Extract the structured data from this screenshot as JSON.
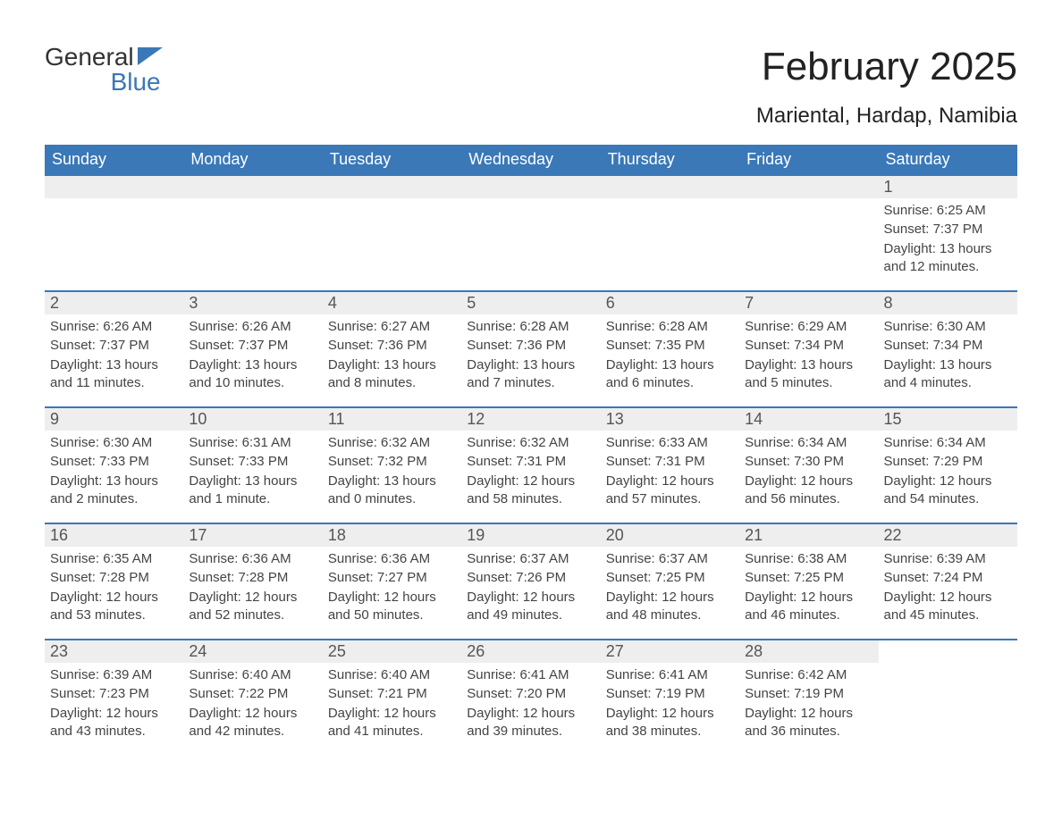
{
  "logo": {
    "word1": "General",
    "word2": "Blue",
    "accent_color": "#3a78b8"
  },
  "title": "February 2025",
  "location": "Mariental, Hardap, Namibia",
  "day_headers": [
    "Sunday",
    "Monday",
    "Tuesday",
    "Wednesday",
    "Thursday",
    "Friday",
    "Saturday"
  ],
  "colors": {
    "header_bg": "#3a78b8",
    "header_fg": "#ffffff",
    "daynum_bg": "#eeeeee",
    "rule": "#3a78b8",
    "text": "#333333"
  },
  "weeks": [
    [
      null,
      null,
      null,
      null,
      null,
      null,
      {
        "n": "1",
        "sunrise": "Sunrise: 6:25 AM",
        "sunset": "Sunset: 7:37 PM",
        "daylight": "Daylight: 13 hours and 12 minutes."
      }
    ],
    [
      {
        "n": "2",
        "sunrise": "Sunrise: 6:26 AM",
        "sunset": "Sunset: 7:37 PM",
        "daylight": "Daylight: 13 hours and 11 minutes."
      },
      {
        "n": "3",
        "sunrise": "Sunrise: 6:26 AM",
        "sunset": "Sunset: 7:37 PM",
        "daylight": "Daylight: 13 hours and 10 minutes."
      },
      {
        "n": "4",
        "sunrise": "Sunrise: 6:27 AM",
        "sunset": "Sunset: 7:36 PM",
        "daylight": "Daylight: 13 hours and 8 minutes."
      },
      {
        "n": "5",
        "sunrise": "Sunrise: 6:28 AM",
        "sunset": "Sunset: 7:36 PM",
        "daylight": "Daylight: 13 hours and 7 minutes."
      },
      {
        "n": "6",
        "sunrise": "Sunrise: 6:28 AM",
        "sunset": "Sunset: 7:35 PM",
        "daylight": "Daylight: 13 hours and 6 minutes."
      },
      {
        "n": "7",
        "sunrise": "Sunrise: 6:29 AM",
        "sunset": "Sunset: 7:34 PM",
        "daylight": "Daylight: 13 hours and 5 minutes."
      },
      {
        "n": "8",
        "sunrise": "Sunrise: 6:30 AM",
        "sunset": "Sunset: 7:34 PM",
        "daylight": "Daylight: 13 hours and 4 minutes."
      }
    ],
    [
      {
        "n": "9",
        "sunrise": "Sunrise: 6:30 AM",
        "sunset": "Sunset: 7:33 PM",
        "daylight": "Daylight: 13 hours and 2 minutes."
      },
      {
        "n": "10",
        "sunrise": "Sunrise: 6:31 AM",
        "sunset": "Sunset: 7:33 PM",
        "daylight": "Daylight: 13 hours and 1 minute."
      },
      {
        "n": "11",
        "sunrise": "Sunrise: 6:32 AM",
        "sunset": "Sunset: 7:32 PM",
        "daylight": "Daylight: 13 hours and 0 minutes."
      },
      {
        "n": "12",
        "sunrise": "Sunrise: 6:32 AM",
        "sunset": "Sunset: 7:31 PM",
        "daylight": "Daylight: 12 hours and 58 minutes."
      },
      {
        "n": "13",
        "sunrise": "Sunrise: 6:33 AM",
        "sunset": "Sunset: 7:31 PM",
        "daylight": "Daylight: 12 hours and 57 minutes."
      },
      {
        "n": "14",
        "sunrise": "Sunrise: 6:34 AM",
        "sunset": "Sunset: 7:30 PM",
        "daylight": "Daylight: 12 hours and 56 minutes."
      },
      {
        "n": "15",
        "sunrise": "Sunrise: 6:34 AM",
        "sunset": "Sunset: 7:29 PM",
        "daylight": "Daylight: 12 hours and 54 minutes."
      }
    ],
    [
      {
        "n": "16",
        "sunrise": "Sunrise: 6:35 AM",
        "sunset": "Sunset: 7:28 PM",
        "daylight": "Daylight: 12 hours and 53 minutes."
      },
      {
        "n": "17",
        "sunrise": "Sunrise: 6:36 AM",
        "sunset": "Sunset: 7:28 PM",
        "daylight": "Daylight: 12 hours and 52 minutes."
      },
      {
        "n": "18",
        "sunrise": "Sunrise: 6:36 AM",
        "sunset": "Sunset: 7:27 PM",
        "daylight": "Daylight: 12 hours and 50 minutes."
      },
      {
        "n": "19",
        "sunrise": "Sunrise: 6:37 AM",
        "sunset": "Sunset: 7:26 PM",
        "daylight": "Daylight: 12 hours and 49 minutes."
      },
      {
        "n": "20",
        "sunrise": "Sunrise: 6:37 AM",
        "sunset": "Sunset: 7:25 PM",
        "daylight": "Daylight: 12 hours and 48 minutes."
      },
      {
        "n": "21",
        "sunrise": "Sunrise: 6:38 AM",
        "sunset": "Sunset: 7:25 PM",
        "daylight": "Daylight: 12 hours and 46 minutes."
      },
      {
        "n": "22",
        "sunrise": "Sunrise: 6:39 AM",
        "sunset": "Sunset: 7:24 PM",
        "daylight": "Daylight: 12 hours and 45 minutes."
      }
    ],
    [
      {
        "n": "23",
        "sunrise": "Sunrise: 6:39 AM",
        "sunset": "Sunset: 7:23 PM",
        "daylight": "Daylight: 12 hours and 43 minutes."
      },
      {
        "n": "24",
        "sunrise": "Sunrise: 6:40 AM",
        "sunset": "Sunset: 7:22 PM",
        "daylight": "Daylight: 12 hours and 42 minutes."
      },
      {
        "n": "25",
        "sunrise": "Sunrise: 6:40 AM",
        "sunset": "Sunset: 7:21 PM",
        "daylight": "Daylight: 12 hours and 41 minutes."
      },
      {
        "n": "26",
        "sunrise": "Sunrise: 6:41 AM",
        "sunset": "Sunset: 7:20 PM",
        "daylight": "Daylight: 12 hours and 39 minutes."
      },
      {
        "n": "27",
        "sunrise": "Sunrise: 6:41 AM",
        "sunset": "Sunset: 7:19 PM",
        "daylight": "Daylight: 12 hours and 38 minutes."
      },
      {
        "n": "28",
        "sunrise": "Sunrise: 6:42 AM",
        "sunset": "Sunset: 7:19 PM",
        "daylight": "Daylight: 12 hours and 36 minutes."
      },
      null
    ]
  ]
}
